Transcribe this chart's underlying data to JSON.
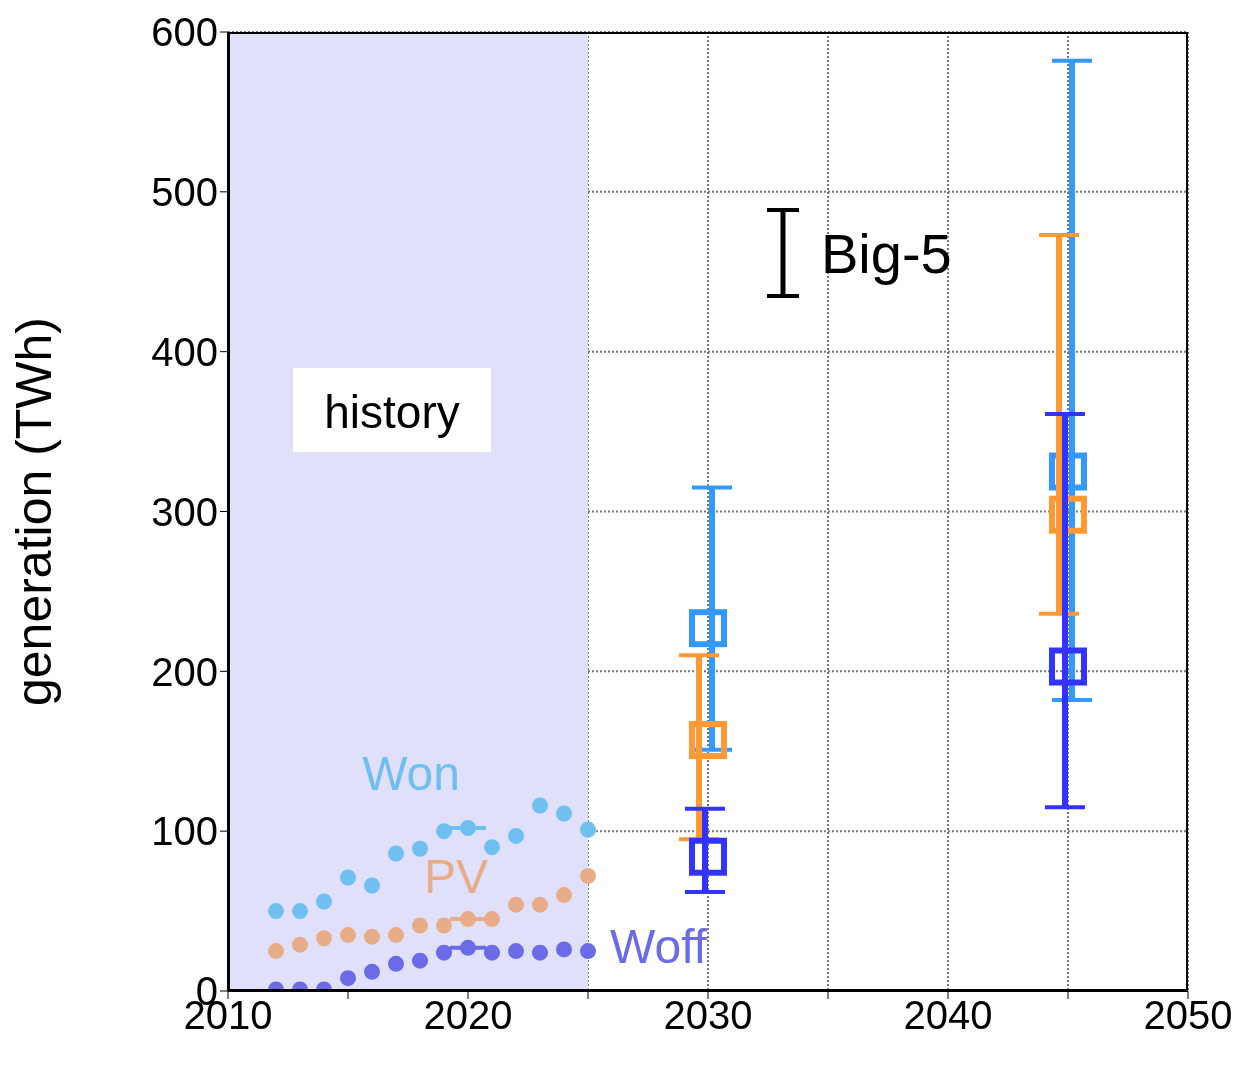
{
  "chart_data": {
    "type": "scatter",
    "ylabel": "generation (TWh)",
    "xlim": [
      2010,
      2050
    ],
    "xticks": [
      2010,
      {
        "value": 2015,
        "label": null
      },
      2020,
      {
        "value": 2025,
        "label": null
      },
      2030,
      {
        "value": 2035,
        "label": null
      },
      2040,
      {
        "value": 2045,
        "label": null
      },
      2050
    ],
    "ylim": [
      0,
      600
    ],
    "yticks": [
      0,
      100,
      200,
      300,
      400,
      500,
      600
    ],
    "grid": true,
    "bands": [
      {
        "axis": "x",
        "from": 2010,
        "to": 2025,
        "label": "history",
        "color": "#e0e0fa"
      }
    ],
    "annotations": [
      "Big-5"
    ],
    "series": [
      {
        "name": "Won",
        "color": "#6fbff0",
        "marker": "circle",
        "x": [
          2012,
          2013,
          2014,
          2015,
          2016,
          2017,
          2018,
          2019,
          2020,
          2021,
          2022,
          2023,
          2024,
          2025
        ],
        "values": [
          50,
          50,
          56,
          71,
          66,
          86,
          89,
          100,
          102,
          90,
          97,
          116,
          111,
          101
        ],
        "xerrors": [
          null,
          null,
          null,
          null,
          null,
          null,
          null,
          null,
          0.75,
          null,
          null,
          null,
          null,
          null
        ]
      },
      {
        "name": "PV",
        "color": "#e8ad88",
        "marker": "circle",
        "x": [
          2012,
          2013,
          2014,
          2015,
          2016,
          2017,
          2018,
          2019,
          2020,
          2021,
          2022,
          2023,
          2024,
          2025
        ],
        "values": [
          25,
          29,
          33,
          35,
          34,
          35,
          41,
          41,
          45,
          45,
          54,
          54,
          60,
          72
        ],
        "xerrors": [
          null,
          null,
          null,
          null,
          null,
          null,
          null,
          null,
          0.75,
          null,
          null,
          null,
          null,
          null
        ]
      },
      {
        "name": "Woff",
        "color": "#6b6be8",
        "marker": "circle",
        "x": [
          2012,
          2013,
          2014,
          2015,
          2016,
          2017,
          2018,
          2019,
          2020,
          2021,
          2022,
          2023,
          2024,
          2025
        ],
        "values": [
          1,
          1,
          1,
          8,
          12,
          17,
          19,
          24,
          27,
          24,
          25,
          24,
          26,
          25
        ],
        "xerrors": [
          null,
          null,
          null,
          null,
          null,
          null,
          null,
          null,
          0.75,
          null,
          null,
          null,
          null,
          null
        ]
      },
      {
        "color": "#3399ff",
        "marker": "square",
        "x": [
          2030,
          2045
        ],
        "values": [
          227,
          325
        ],
        "errors": [
          [
            151,
            315
          ],
          [
            182,
            582
          ]
        ]
      },
      {
        "color": "#ff9933",
        "marker": "square",
        "x": [
          2030,
          2045
        ],
        "values": [
          157,
          298
        ],
        "errors": [
          [
            95,
            210
          ],
          [
            236,
            473
          ]
        ]
      },
      {
        "color": "#3333ff",
        "marker": "square",
        "x": [
          2030,
          2045
        ],
        "values": [
          84,
          203
        ],
        "errors": [
          [
            62,
            114
          ],
          [
            115,
            361
          ]
        ]
      }
    ]
  }
}
